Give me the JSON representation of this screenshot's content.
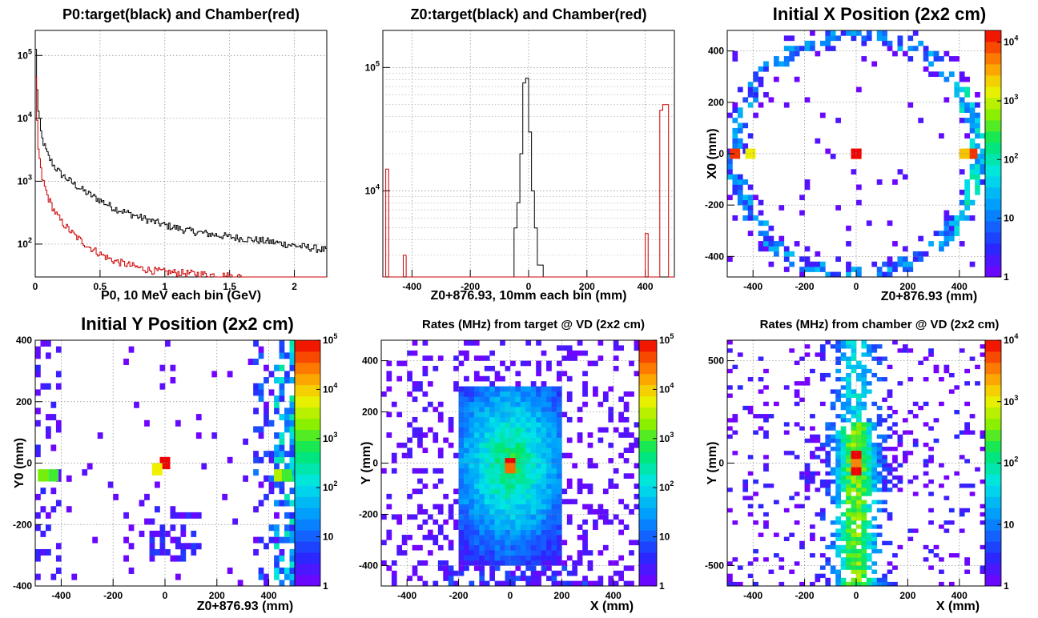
{
  "chart_data": [
    {
      "id": "p0",
      "type": "line",
      "title": "P0:target(black) and Chamber(red)",
      "xlabel": "P0, 10 MeV each bin (GeV)",
      "ylabel": "",
      "xlim": [
        0,
        2.25
      ],
      "ylim": [
        30,
        250000
      ],
      "yscale": "log",
      "grid": true,
      "xticks": [
        "0",
        "0.5",
        "1",
        "1.5",
        "2"
      ],
      "yticks": [
        "10^2",
        "10^3",
        "10^4",
        "10^5"
      ],
      "series": [
        {
          "color": "#000000",
          "x": [
            0.005,
            0.02,
            0.05,
            0.1,
            0.15,
            0.2,
            0.3,
            0.4,
            0.5,
            0.6,
            0.8,
            1.0,
            1.2,
            1.5,
            1.8,
            2.0,
            2.25
          ],
          "y": [
            120000,
            15000,
            5000,
            2500,
            1700,
            1300,
            900,
            650,
            500,
            380,
            270,
            200,
            160,
            130,
            110,
            95,
            80
          ]
        },
        {
          "color": "#cc0000",
          "x": [
            0.005,
            0.02,
            0.05,
            0.1,
            0.15,
            0.2,
            0.3,
            0.4,
            0.5,
            0.6,
            0.7,
            0.8,
            0.9,
            1.0,
            1.1,
            1.2,
            1.3,
            1.4,
            1.5,
            1.6
          ],
          "y": [
            40000,
            4000,
            1200,
            550,
            330,
            230,
            140,
            95,
            70,
            55,
            48,
            42,
            38,
            36,
            35,
            34,
            33,
            32,
            31,
            30
          ]
        }
      ]
    },
    {
      "id": "z0",
      "type": "line",
      "title": "Z0:target(black) and Chamber(red)",
      "xlabel": "Z0+876.93, 10mm each bin (mm)",
      "ylabel": "",
      "xlim": [
        -500,
        500
      ],
      "ylim": [
        2000,
        200000
      ],
      "yscale": "log",
      "grid": true,
      "xticks": [
        "-400",
        "-200",
        "0",
        "200",
        "400"
      ],
      "yticks": [
        "10^4",
        "10^5"
      ],
      "series": [
        {
          "color": "#000000",
          "x": [
            -40,
            -30,
            -20,
            -10,
            0,
            10,
            20,
            30,
            40
          ],
          "y": [
            5000,
            8000,
            20000,
            75000,
            82000,
            30000,
            10000,
            5000,
            2500
          ]
        },
        {
          "color": "#cc0000",
          "x": [
            -480,
            -470,
            -420,
            -410,
            400,
            410,
            420,
            460,
            470
          ],
          "y": [
            15000,
            2000,
            3000,
            2000,
            2000,
            4500,
            2000,
            45000,
            50000
          ]
        }
      ]
    },
    {
      "id": "initx",
      "type": "heatmap",
      "title": "Initial X Position (2x2 cm)",
      "xlabel": "Z0+876.93 (mm)",
      "ylabel": "X0 (mm)",
      "xlim": [
        -500,
        500
      ],
      "ylim": [
        -480,
        480
      ],
      "grid": true,
      "xticks": [
        "-400",
        "-200",
        "0",
        "200",
        "400"
      ],
      "yticks": [
        "-400",
        "-200",
        "0",
        "200",
        "400"
      ],
      "zlabels": [
        "1",
        "10",
        "10^2",
        "10^3",
        "10^4"
      ],
      "zmax_exp": 4.2,
      "pattern": "ring",
      "hotspots": [
        [
          0,
          0,
          4.2
        ],
        [
          -470,
          0,
          4.0
        ],
        [
          450,
          0,
          4.0
        ],
        [
          -410,
          0,
          3.2
        ],
        [
          420,
          0,
          3.4
        ]
      ]
    },
    {
      "id": "inity",
      "type": "heatmap",
      "title": "Initial Y Position (2x2 cm)",
      "xlabel": "Z0+876.93 (mm)",
      "ylabel": "Y0 (mm)",
      "xlim": [
        -500,
        500
      ],
      "ylim": [
        -400,
        400
      ],
      "grid": true,
      "xticks": [
        "-400",
        "-200",
        "0",
        "200",
        "400"
      ],
      "yticks": [
        "-400",
        "-200",
        "0",
        "200",
        "400"
      ],
      "zlabels": [
        "1",
        "10",
        "10^2",
        "10^3",
        "10^4",
        "10^5"
      ],
      "zmax_exp": 5.0,
      "pattern": "inity",
      "hotspots": [
        [
          0,
          0,
          5.0
        ],
        [
          -30,
          -20,
          3.8
        ],
        [
          -470,
          -40,
          3.2
        ],
        [
          -430,
          -40,
          3.0
        ],
        [
          440,
          -40,
          3.5
        ],
        [
          470,
          -40,
          3.0
        ]
      ]
    },
    {
      "id": "ratetarget",
      "type": "heatmap",
      "title": "Rates (MHz) from target @ VD (2x2 cm)",
      "xlabel": "X (mm)",
      "ylabel": "Y (mm)",
      "xlim": [
        -500,
        500
      ],
      "ylim": [
        -480,
        480
      ],
      "grid": true,
      "xticks": [
        "-400",
        "-200",
        "0",
        "200",
        "400"
      ],
      "yticks": [
        "-400",
        "-200",
        "0",
        "200",
        "400"
      ],
      "zlabels": [
        "1",
        "10",
        "10^2",
        "10^3",
        "10^4",
        "10^5"
      ],
      "zmax_exp": 5.0,
      "pattern": "box",
      "hotspots": [
        [
          0,
          0,
          5.0
        ],
        [
          0,
          -20,
          4.5
        ]
      ]
    },
    {
      "id": "ratechamber",
      "type": "heatmap",
      "title": "Rates (MHz) from chamber @ VD (2x2 cm)",
      "xlabel": "X (mm)",
      "ylabel": "Y (mm)",
      "xlim": [
        -500,
        500
      ],
      "ylim": [
        -600,
        600
      ],
      "grid": true,
      "xticks": [
        "-400",
        "-200",
        "0",
        "200",
        "400"
      ],
      "yticks": [
        "-500",
        "0",
        "500"
      ],
      "zlabels": [
        "1",
        "10",
        "10^2",
        "10^3",
        "10^4"
      ],
      "zmax_exp": 4.0,
      "pattern": "column",
      "hotspots": [
        [
          0,
          40,
          4.0
        ],
        [
          0,
          -40,
          4.0
        ],
        [
          0,
          0,
          3.5
        ]
      ]
    }
  ]
}
